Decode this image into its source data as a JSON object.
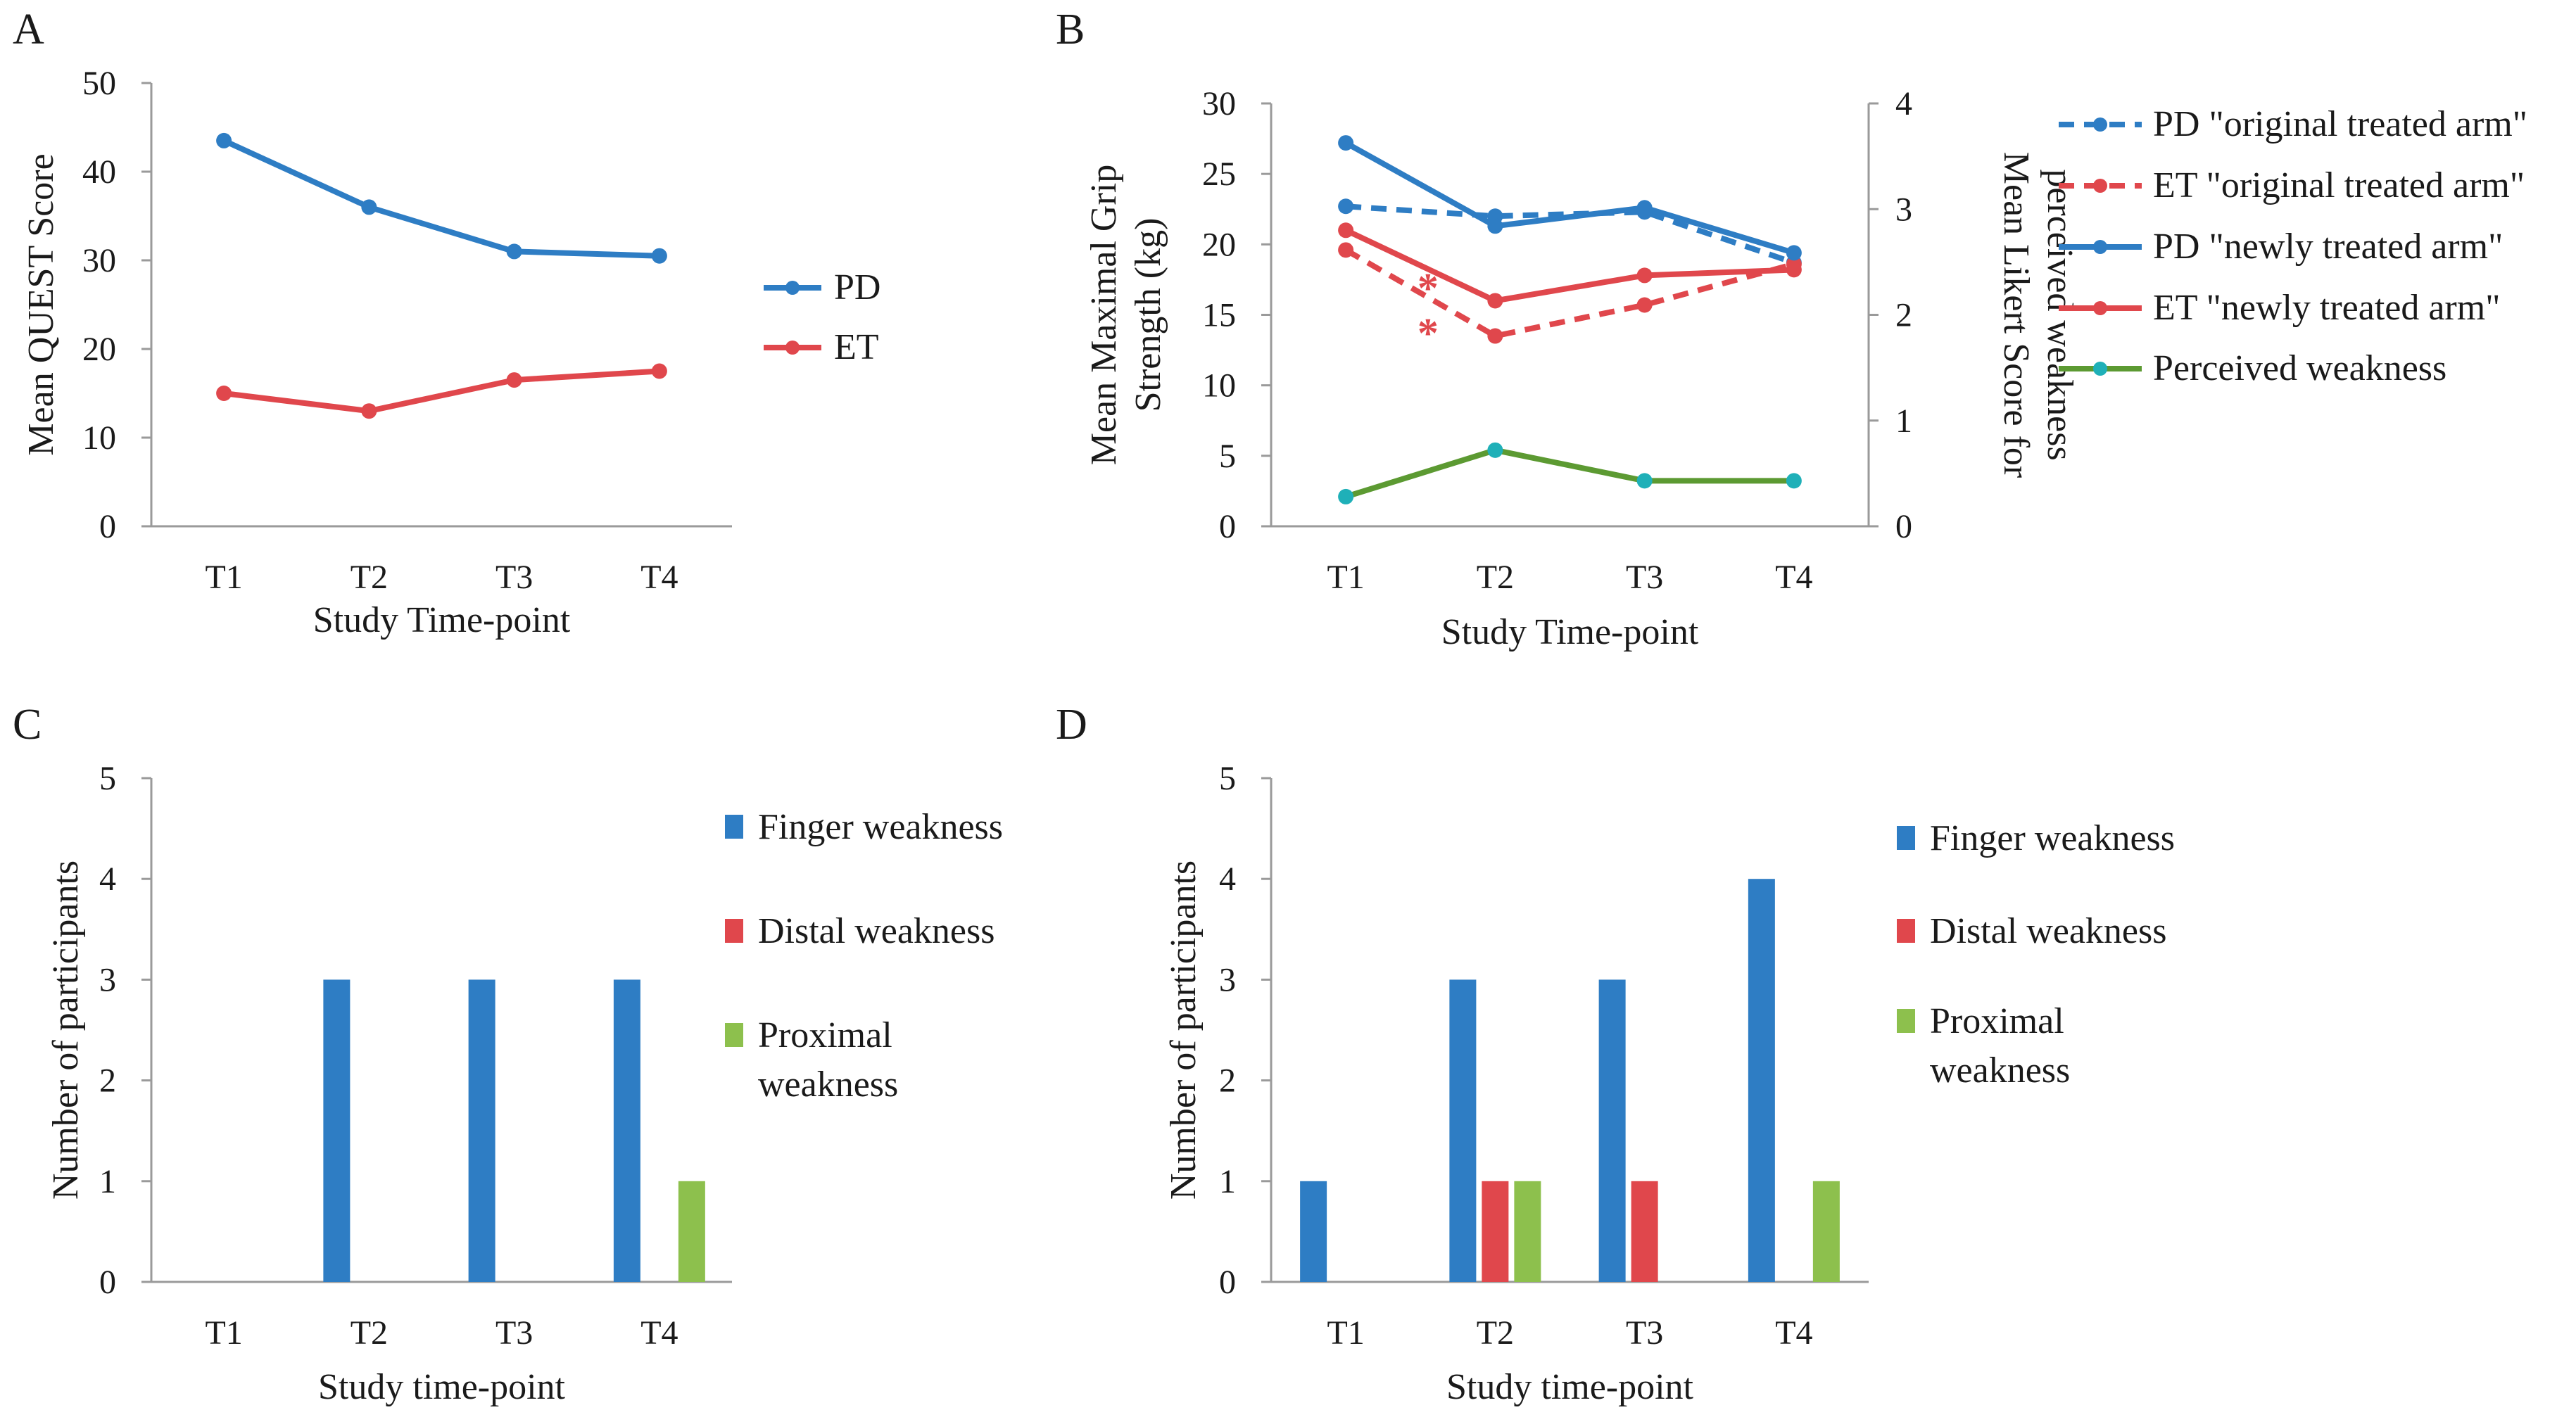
{
  "panels": [
    "A",
    "B",
    "C",
    "D"
  ],
  "colors": {
    "pd": "#2e7dc4",
    "et": "#e0474c",
    "weak": "#5c9a32",
    "weak_marker": "#1fb0b8",
    "finger": "#2e7dc4",
    "distal": "#e0474c",
    "proximal": "#8dc04d",
    "axis": "#9a9a9a"
  },
  "chart_data": [
    {
      "panel": "A",
      "type": "line",
      "categories": [
        "T1",
        "T2",
        "T3",
        "T4"
      ],
      "series": [
        {
          "name": "PD",
          "values": [
            43.5,
            36.0,
            31.0,
            30.5
          ],
          "color": "pd",
          "dash": false
        },
        {
          "name": "ET",
          "values": [
            15.0,
            13.0,
            16.5,
            17.5
          ],
          "color": "et",
          "dash": false
        }
      ],
      "xlabel": "Study Time-point",
      "ylabel": "Mean QUEST Score",
      "ylim": [
        0,
        50
      ],
      "yticks": [
        0,
        10,
        20,
        30,
        40,
        50
      ]
    },
    {
      "panel": "B",
      "type": "line",
      "categories": [
        "T1",
        "T2",
        "T3",
        "T4"
      ],
      "series": [
        {
          "name": "PD \"original treated arm\"",
          "values": [
            22.7,
            22.0,
            22.3,
            18.7
          ],
          "color": "pd",
          "dash": true,
          "axis": "left"
        },
        {
          "name": "ET \"original treated arm\"",
          "values": [
            19.6,
            13.5,
            15.7,
            18.6
          ],
          "color": "et",
          "dash": true,
          "axis": "left"
        },
        {
          "name": "PD \"newly treated arm\"",
          "values": [
            27.2,
            21.3,
            22.6,
            19.4
          ],
          "color": "pd",
          "dash": false,
          "axis": "left"
        },
        {
          "name": "ET \"newly treated arm\"",
          "values": [
            21.0,
            16.0,
            17.8,
            18.2
          ],
          "color": "et",
          "dash": false,
          "axis": "left"
        },
        {
          "name": "Perceived weakness",
          "values": [
            0.28,
            0.72,
            0.43,
            0.43
          ],
          "color": "weak",
          "marker": "weak_marker",
          "dash": false,
          "axis": "right"
        }
      ],
      "xlabel": "Study Time-point",
      "ylabel": "Mean Maximal  Grip Strength (kg)",
      "ylabel_lines": [
        "Mean Maximal  Grip",
        "Strength (kg)"
      ],
      "ylim": [
        0,
        30
      ],
      "yticks": [
        0,
        5,
        10,
        15,
        20,
        25,
        30
      ],
      "y2label": "Mean Likert  Score for perceived weakness",
      "y2label_lines": [
        "Mean Likert  Score for",
        "perceived weakness"
      ],
      "y2lim": [
        0,
        4
      ],
      "y2ticks": [
        0,
        1,
        2,
        3,
        4
      ],
      "annotations": [
        {
          "text": "*",
          "x_between": [
            0,
            1
          ],
          "frac": 0.55,
          "y": 17.2
        },
        {
          "text": "*",
          "x_between": [
            0,
            1
          ],
          "frac": 0.55,
          "y": 14.0
        }
      ]
    },
    {
      "panel": "C",
      "type": "bar",
      "categories": [
        "T1",
        "T2",
        "T3",
        "T4"
      ],
      "series": [
        {
          "name": "Finger weakness",
          "values": [
            0,
            3,
            3,
            3
          ],
          "color": "finger"
        },
        {
          "name": "Distal weakness",
          "values": [
            0,
            0,
            0,
            0
          ],
          "color": "distal"
        },
        {
          "name": "Proximal weakness",
          "values": [
            0,
            0,
            0,
            1
          ],
          "color": "proximal"
        }
      ],
      "legend_lines": [
        [
          "Finger weakness"
        ],
        [
          "Distal weakness"
        ],
        [
          "Proximal",
          "weakness"
        ]
      ],
      "xlabel": "Study time-point",
      "ylabel": "Number of participants",
      "ylim": [
        0,
        5
      ],
      "yticks": [
        0,
        1,
        2,
        3,
        4,
        5
      ]
    },
    {
      "panel": "D",
      "type": "bar",
      "categories": [
        "T1",
        "T2",
        "T3",
        "T4"
      ],
      "series": [
        {
          "name": "Finger weakness",
          "values": [
            1,
            3,
            3,
            4
          ],
          "color": "finger"
        },
        {
          "name": "Distal weakness",
          "values": [
            0,
            1,
            1,
            0
          ],
          "color": "distal"
        },
        {
          "name": "Proximal weakness",
          "values": [
            0,
            1,
            0,
            1
          ],
          "color": "proximal"
        }
      ],
      "legend_lines": [
        [
          "Finger weakness"
        ],
        [
          "Distal weakness"
        ],
        [
          "Proximal",
          "weakness"
        ]
      ],
      "xlabel": "Study time-point",
      "ylabel": "Number of participants",
      "ylim": [
        0,
        5
      ],
      "yticks": [
        0,
        1,
        2,
        3,
        4,
        5
      ]
    }
  ]
}
